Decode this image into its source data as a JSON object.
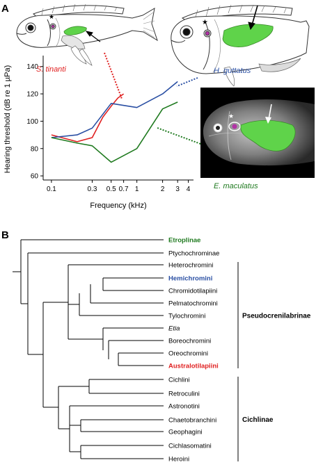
{
  "panels": {
    "a": "A",
    "b": "B"
  },
  "chart_data": {
    "type": "line",
    "xscale": "log",
    "xlabel": "Frequency (kHz)",
    "ylabel": "Hearing threshold (dB re 1 µPa)",
    "xlim": [
      0.08,
      4.6
    ],
    "ylim": [
      57,
      148
    ],
    "x_ticks": [
      0.1,
      0.3,
      0.5,
      0.7,
      1,
      2,
      3,
      4
    ],
    "x_tick_labels": [
      "0.1",
      "0.3",
      "0.5",
      "0.7",
      "1",
      "2",
      "3",
      "4"
    ],
    "y_ticks": [
      60,
      80,
      100,
      120,
      140
    ],
    "y_tick_labels": [
      "60",
      "80",
      "100",
      "120",
      "140"
    ],
    "series": [
      {
        "name": "S. tinanti",
        "color": "#e02020",
        "x": [
          0.1,
          0.2,
          0.3,
          0.4,
          0.5,
          0.6,
          0.7
        ],
        "y": [
          90,
          85,
          88,
          103,
          111,
          117,
          120
        ]
      },
      {
        "name": "H. guttatus",
        "color": "#2a4fa3",
        "x": [
          0.1,
          0.2,
          0.3,
          0.5,
          1,
          2,
          3
        ],
        "y": [
          88,
          90,
          95,
          113,
          110,
          120,
          129
        ]
      },
      {
        "name": "E. maculatus",
        "color": "#1f7a1f",
        "x": [
          0.1,
          0.2,
          0.3,
          0.5,
          1,
          2,
          3
        ],
        "y": [
          88,
          84,
          82,
          70,
          80,
          109,
          114
        ]
      }
    ]
  },
  "colors": {
    "red": "#e02020",
    "blue": "#2a4fa3",
    "green": "#1f7a1f",
    "bladder_green": "#5fd34a"
  },
  "icons": [
    "fish-drawing-s-tinanti",
    "fish-drawing-h-guttatus",
    "fish-xray-e-maculatus"
  ],
  "tree": {
    "taxa": [
      {
        "label": "Etroplinae",
        "color": "#1f7a1f",
        "bold": true,
        "italic": false
      },
      {
        "label": "Ptychochrominae",
        "color": "#000000",
        "bold": false,
        "italic": false
      },
      {
        "label": "Heterochromini",
        "color": "#000000",
        "bold": false,
        "italic": false
      },
      {
        "label": "Hemichromini",
        "color": "#2a4fa3",
        "bold": true,
        "italic": false
      },
      {
        "label": "Chromidotilapiini",
        "color": "#000000",
        "bold": false,
        "italic": false
      },
      {
        "label": "Pelmatochromini",
        "color": "#000000",
        "bold": false,
        "italic": false
      },
      {
        "label": "Tylochromini",
        "color": "#000000",
        "bold": false,
        "italic": false
      },
      {
        "label": "Etia",
        "color": "#000000",
        "bold": false,
        "italic": true
      },
      {
        "label": "Boreochromini",
        "color": "#000000",
        "bold": false,
        "italic": false
      },
      {
        "label": "Oreochromini",
        "color": "#000000",
        "bold": false,
        "italic": false
      },
      {
        "label": "Australotilapiini",
        "color": "#e02020",
        "bold": true,
        "italic": false
      },
      {
        "label": "Cichlini",
        "color": "#000000",
        "bold": false,
        "italic": false
      },
      {
        "label": "Retroculini",
        "color": "#000000",
        "bold": false,
        "italic": false
      },
      {
        "label": "Astronotini",
        "color": "#000000",
        "bold": false,
        "italic": false
      },
      {
        "label": "Chaetobranchini",
        "color": "#000000",
        "bold": false,
        "italic": false
      },
      {
        "label": "Geophagini",
        "color": "#000000",
        "bold": false,
        "italic": false
      },
      {
        "label": "Cichlasomatini",
        "color": "#000000",
        "bold": false,
        "italic": false
      },
      {
        "label": "Heroini",
        "color": "#000000",
        "bold": false,
        "italic": false
      }
    ],
    "groups": [
      {
        "label": "Pseudocrenilabrinae",
        "from": 2,
        "to": 10
      },
      {
        "label": "Cichlinae",
        "from": 11,
        "to": 17
      }
    ]
  }
}
